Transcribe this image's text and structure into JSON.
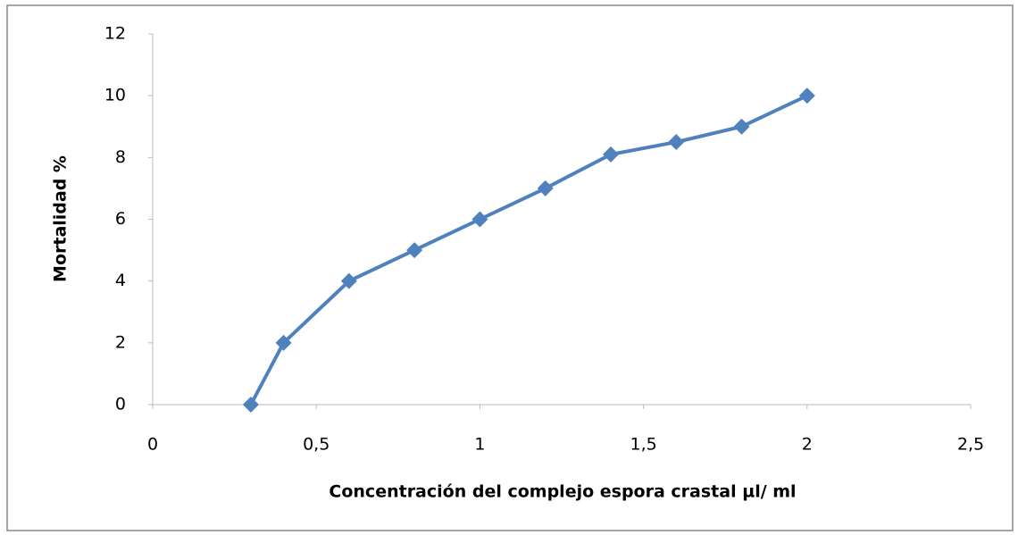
{
  "chart_data": {
    "type": "line",
    "x_label": "Concentración del complejo espora crastal µl/ ml",
    "y_label": "Mortalidad %",
    "series": [
      {
        "name": "Mortalidad",
        "color": "#4f81bd",
        "x": [
          0.3,
          0.4,
          0.6,
          0.8,
          1,
          1.2,
          1.4,
          1.6,
          1.8,
          2
        ],
        "values": [
          0,
          2,
          4,
          5,
          6,
          7,
          8.1,
          8.5,
          9,
          10
        ]
      }
    ],
    "xlim": [
      0,
      2.5
    ],
    "xticks": [
      0,
      {
        "value": 0.5,
        "label": "0,5"
      },
      1,
      {
        "value": 1.5,
        "label": "1,5"
      },
      2,
      {
        "value": 2.5,
        "label": "2,5"
      }
    ],
    "ylim": [
      0,
      12
    ],
    "yticks": [
      0,
      2,
      4,
      6,
      8,
      10,
      12
    ],
    "grid": false
  }
}
